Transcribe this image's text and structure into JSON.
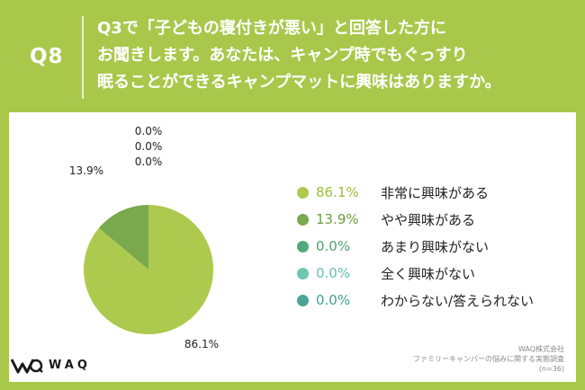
{
  "header": {
    "question_number": "Q8",
    "question_lines": [
      "Q3で「子どもの寝付きが悪い」と回答した方に",
      "お聞きします。あなたは、キャンプ時でもぐっすり",
      "眠ることができるキャンプマットに興味はありますか。"
    ]
  },
  "colors": {
    "background": "#a9c84b",
    "series": [
      "#adca4e",
      "#7aa84c",
      "#52a87a",
      "#6ec7b0",
      "#4aa597"
    ],
    "legend_pct": [
      "#9bbf3a",
      "#6f9e3d",
      "#4f9f75",
      "#66c2ab",
      "#46a08f"
    ]
  },
  "chart_data": {
    "type": "pie",
    "series": [
      {
        "name": "非常に興味がある",
        "value": 86.1,
        "label": "86.1%"
      },
      {
        "name": "やや興味がある",
        "value": 13.9,
        "label": "13.9%"
      },
      {
        "name": "あまり興味がない",
        "value": 0.0,
        "label": "0.0%"
      },
      {
        "name": "全く興味がない",
        "value": 0.0,
        "label": "0.0%"
      },
      {
        "name": "わからない/答えられない",
        "value": 0.0,
        "label": "0.0%"
      }
    ],
    "legend_placement": "right",
    "direction": "clockwise from top"
  },
  "logo": {
    "text": "WAQ"
  },
  "source": {
    "company": "WAQ株式会社",
    "survey": "ファミリーキャンパーの悩みに関する実態調査",
    "n": "(n=36)"
  }
}
